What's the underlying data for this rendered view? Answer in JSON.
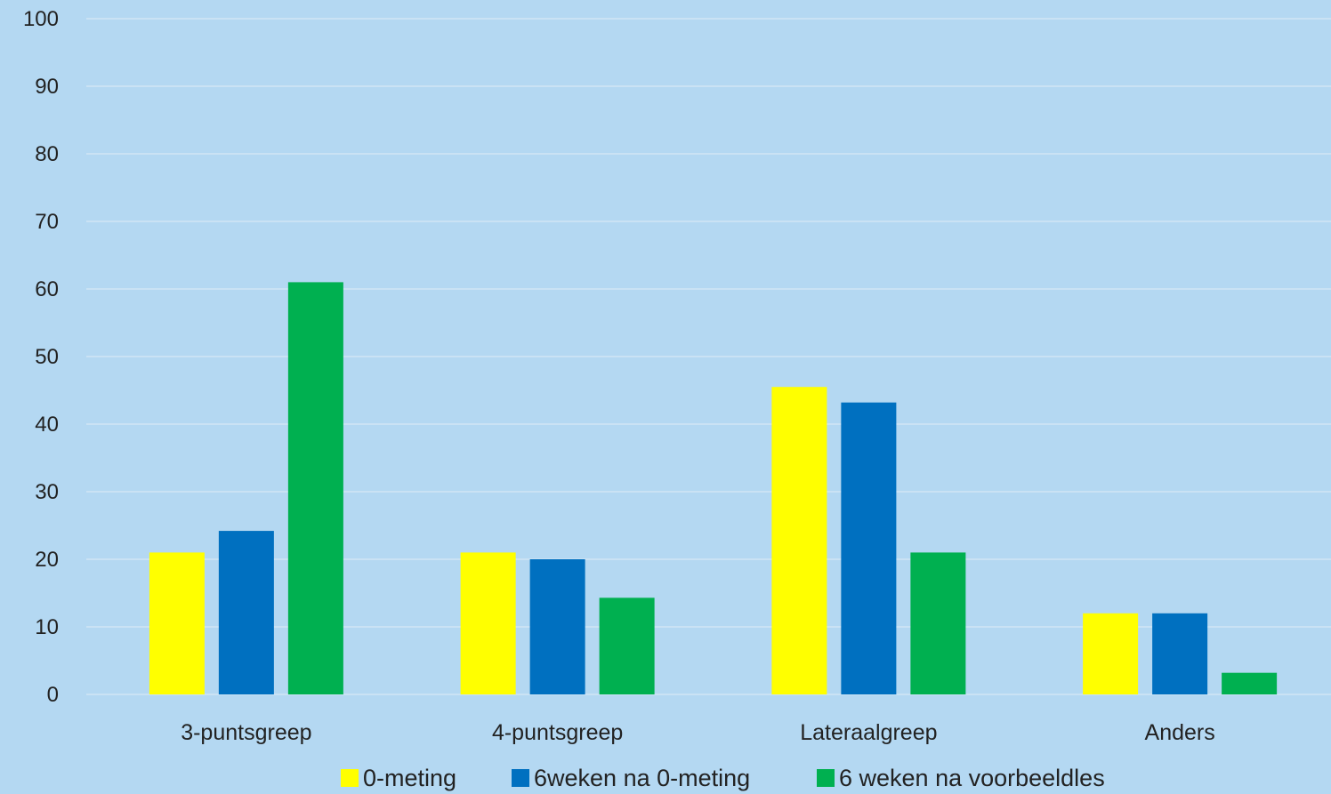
{
  "chart_data": {
    "type": "bar",
    "title": "",
    "xlabel": "",
    "ylabel": "",
    "ylim": [
      0,
      100
    ],
    "yticks": [
      0,
      10,
      20,
      30,
      40,
      50,
      60,
      70,
      80,
      90,
      100
    ],
    "grid": true,
    "legend_position": "bottom",
    "categories": [
      "3-puntsgreep",
      "4-puntsgreep",
      "Lateraalgreep",
      "Anders"
    ],
    "series": [
      {
        "name": "0-meting",
        "color": "#ffff00",
        "values": [
          21,
          21,
          45.5,
          12
        ]
      },
      {
        "name": "6weken na 0-meting",
        "color": "#0070c0",
        "values": [
          24.2,
          20,
          43.2,
          12
        ]
      },
      {
        "name": "6 weken na voorbeeldles",
        "color": "#00b050",
        "values": [
          61,
          14.3,
          21,
          3.2
        ]
      }
    ]
  }
}
